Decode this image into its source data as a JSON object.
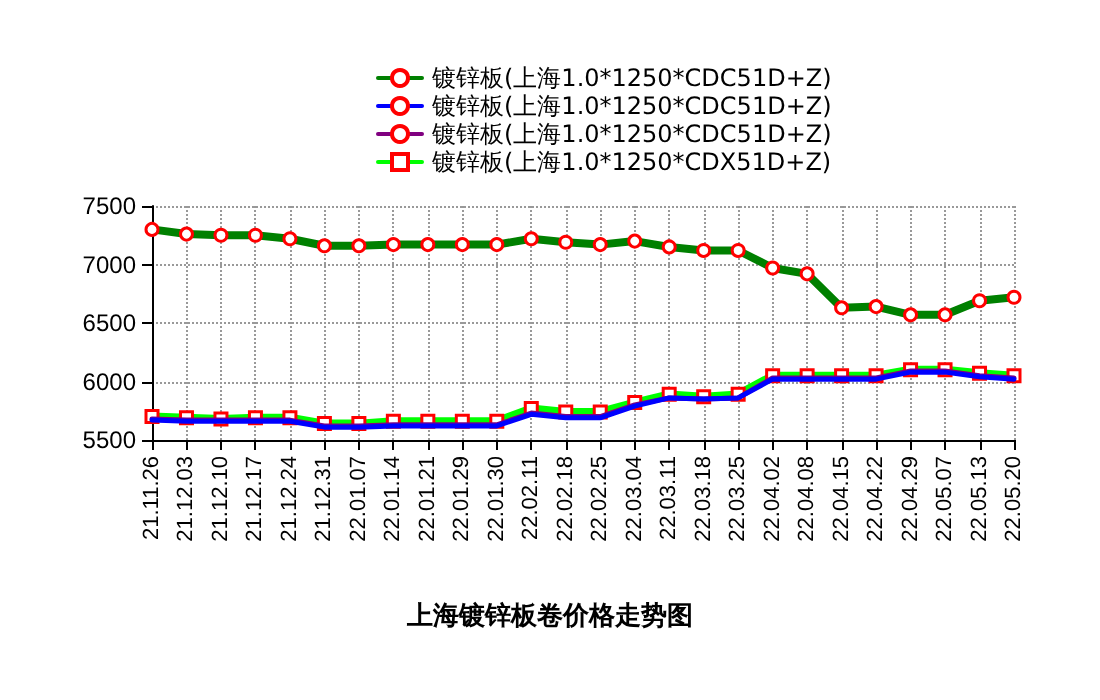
{
  "chart_data": {
    "type": "line",
    "title": "上海镀锌板卷价格走势图",
    "categories": [
      "21.11.26",
      "21.12.03",
      "21.12.10",
      "21.12.17",
      "21.12.24",
      "21.12.31",
      "22.01.07",
      "22.01.14",
      "22.01.21",
      "22.01.29",
      "22.01.30",
      "22.02.11",
      "22.02.18",
      "22.02.25",
      "22.03.04",
      "22.03.11",
      "22.03.18",
      "22.03.25",
      "22.04.02",
      "22.04.08",
      "22.04.15",
      "22.04.22",
      "22.04.29",
      "22.05.07",
      "22.05.13",
      "22.05.20"
    ],
    "series": [
      {
        "name": "镀锌板(上海1.0*1250*CDC51D+Z)",
        "color": "#008000",
        "marker": "circle",
        "values": [
          7300,
          7260,
          7250,
          7250,
          7220,
          7160,
          7160,
          7170,
          7170,
          7170,
          7170,
          7220,
          7190,
          7170,
          7200,
          7150,
          7120,
          7120,
          6970,
          6920,
          6630,
          6640,
          6570,
          6570,
          6690,
          6720
        ]
      },
      {
        "name": "镀锌板(上海1.0*1250*CDC51D+Z)",
        "color": "#0000ff",
        "marker": "none",
        "values": [
          5670,
          5660,
          5660,
          5660,
          5660,
          5610,
          5610,
          5620,
          5620,
          5620,
          5620,
          5720,
          5690,
          5690,
          5790,
          5860,
          5850,
          5860,
          6020,
          6020,
          6020,
          6020,
          6080,
          6080,
          6040,
          6020
        ]
      },
      {
        "name": "镀锌板(上海1.0*1250*CDC51D+Z)",
        "color": "#800080",
        "marker": "none",
        "values": [
          5680,
          5670,
          5670,
          5670,
          5670,
          5620,
          5620,
          5630,
          5630,
          5630,
          5630,
          5730,
          5700,
          5700,
          5800,
          5860,
          5850,
          5860,
          6030,
          6030,
          6030,
          6030,
          6090,
          6090,
          6050,
          6030
        ]
      },
      {
        "name": "镀锌板(上海1.0*1250*CDX51D+Z)",
        "color": "#00ff00",
        "marker": "square",
        "values": [
          5700,
          5690,
          5680,
          5690,
          5690,
          5640,
          5640,
          5660,
          5660,
          5660,
          5660,
          5770,
          5740,
          5740,
          5820,
          5890,
          5870,
          5890,
          6050,
          6050,
          6050,
          6050,
          6100,
          6100,
          6070,
          6050
        ]
      }
    ],
    "ylim": [
      5500,
      7500
    ],
    "yticks": [
      5500,
      6000,
      6500,
      7000,
      7500
    ],
    "grid": true,
    "legend": "top",
    "line_style": "solid"
  }
}
